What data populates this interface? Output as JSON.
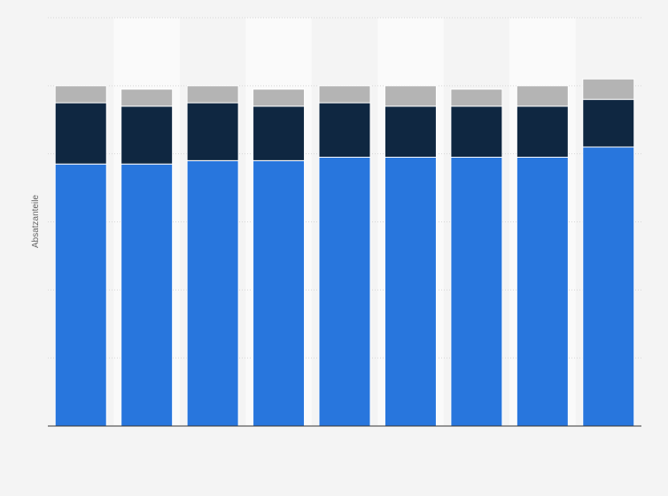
{
  "chart_data": {
    "type": "bar",
    "stacked": true,
    "title": "",
    "xlabel": "",
    "ylabel": "Absatzanteile",
    "ylim": [
      0,
      1.2
    ],
    "grid": true,
    "categories": [
      "",
      "",
      "",
      "",
      "",
      "",
      "",
      "",
      ""
    ],
    "series": [
      {
        "color": "#2876dd",
        "values": [
          0.77,
          0.77,
          0.78,
          0.78,
          0.79,
          0.79,
          0.79,
          0.79,
          0.82
        ]
      },
      {
        "color": "#0f2741",
        "values": [
          0.18,
          0.17,
          0.17,
          0.16,
          0.16,
          0.15,
          0.15,
          0.15,
          0.14
        ]
      },
      {
        "color": "#b4b4b4",
        "values": [
          0.05,
          0.05,
          0.05,
          0.05,
          0.05,
          0.06,
          0.05,
          0.06,
          0.06
        ]
      }
    ]
  }
}
